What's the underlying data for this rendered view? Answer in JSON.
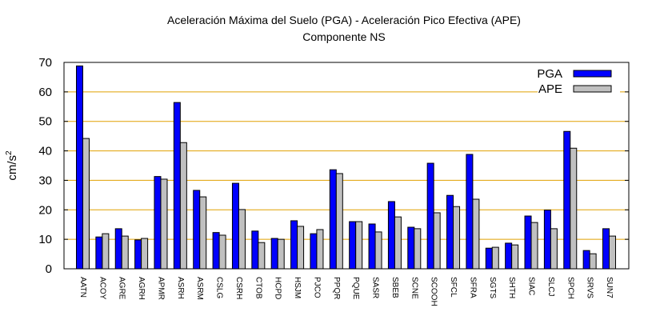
{
  "chart_data": {
    "type": "bar",
    "title": "Aceleración Máxima del Suelo (PGA) -  Aceleración Pico Efectiva (APE)",
    "subtitle": "Componente NS",
    "xlabel": "",
    "ylabel_base": "cm/s",
    "ylabel_sup": "2",
    "ylim": [
      0,
      70
    ],
    "yticks": [
      0,
      10,
      20,
      30,
      40,
      50,
      60,
      70
    ],
    "grid": true,
    "legend_position": "top-right",
    "categories": [
      "AATN",
      "ACOY",
      "AGRE",
      "AGRH",
      "APMR",
      "ASRH",
      "ASRM",
      "CSLG",
      "CSRH",
      "CTOB",
      "HCPD",
      "HSJM",
      "PJCO",
      "PPQR",
      "PQUE",
      "SASR",
      "SBEB",
      "SCNE",
      "SCOOH",
      "SFCL",
      "SFRA",
      "SGTS",
      "SHTH",
      "SIAC",
      "SLCJ",
      "SPCH",
      "SRVS",
      "SUN7"
    ],
    "series": [
      {
        "name": "PGA",
        "color": "#0000ff",
        "values": [
          68.8,
          10.8,
          13.6,
          9.8,
          31.3,
          56.4,
          26.6,
          12.3,
          29.0,
          12.8,
          10.3,
          16.3,
          11.9,
          33.6,
          16.0,
          15.2,
          22.8,
          14.1,
          35.8,
          24.9,
          38.8,
          7.0,
          8.7,
          17.9,
          19.9,
          46.6,
          6.2,
          13.6
        ]
      },
      {
        "name": "APE",
        "color": "#c0c0c0",
        "values": [
          44.2,
          11.9,
          11.1,
          10.3,
          30.4,
          42.8,
          24.4,
          11.4,
          20.1,
          8.9,
          10.0,
          14.4,
          13.3,
          32.3,
          16.0,
          12.5,
          17.6,
          13.6,
          19.0,
          21.1,
          23.6,
          7.3,
          8.1,
          15.7,
          13.6,
          40.9,
          5.1,
          11.1
        ]
      }
    ],
    "grid_color": "#e0a000"
  }
}
